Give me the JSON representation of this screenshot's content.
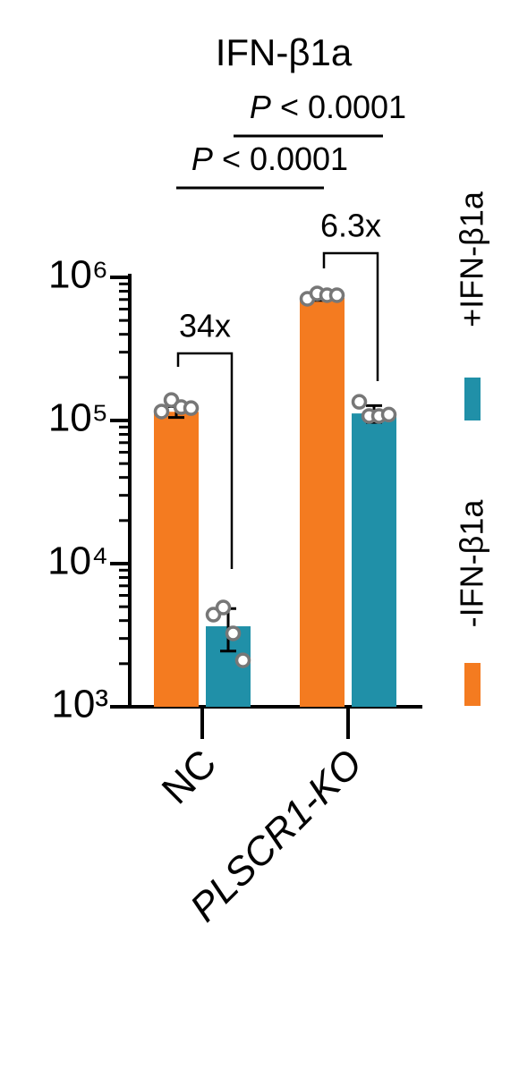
{
  "chart_data": {
    "type": "bar",
    "title": "IFN-β1a",
    "categories": [
      "NC",
      "PLSCR1-KO"
    ],
    "log_scale": true,
    "minor_ticks": true,
    "ylim": [
      1000,
      1000000
    ],
    "yticks": [
      {
        "value": 1000,
        "label": "10³"
      },
      {
        "value": 10000,
        "label": "10⁴"
      },
      {
        "value": 100000,
        "label": "10⁵"
      },
      {
        "value": 1000000,
        "label": "10⁶"
      }
    ],
    "series": [
      {
        "name": "-IFN-β1a",
        "color": "#f47b20",
        "values": [
          115000,
          720000
        ],
        "errors": [
          10000,
          30000
        ],
        "points": [
          [
            115500,
            139000,
            124000,
            122000
          ],
          [
            708000,
            772000,
            750000,
            750000
          ]
        ]
      },
      {
        "name": "+IFN-β1a",
        "color": "#2090a8",
        "values": [
          3650,
          112000
        ],
        "errors": [
          1200,
          15000
        ],
        "points": [
          [
            4400,
            4940,
            3255,
            2110
          ],
          [
            135000,
            107500,
            107500,
            110000
          ]
        ]
      }
    ],
    "fold_changes": [
      {
        "category": 0,
        "label": "34x"
      },
      {
        "category": 1,
        "label": "6.3x"
      }
    ],
    "comparisons": [
      {
        "series": 1,
        "italic": "P",
        "text": "< 0.0001"
      },
      {
        "series": 0,
        "italic": "P",
        "text": "< 0.0001"
      }
    ]
  }
}
